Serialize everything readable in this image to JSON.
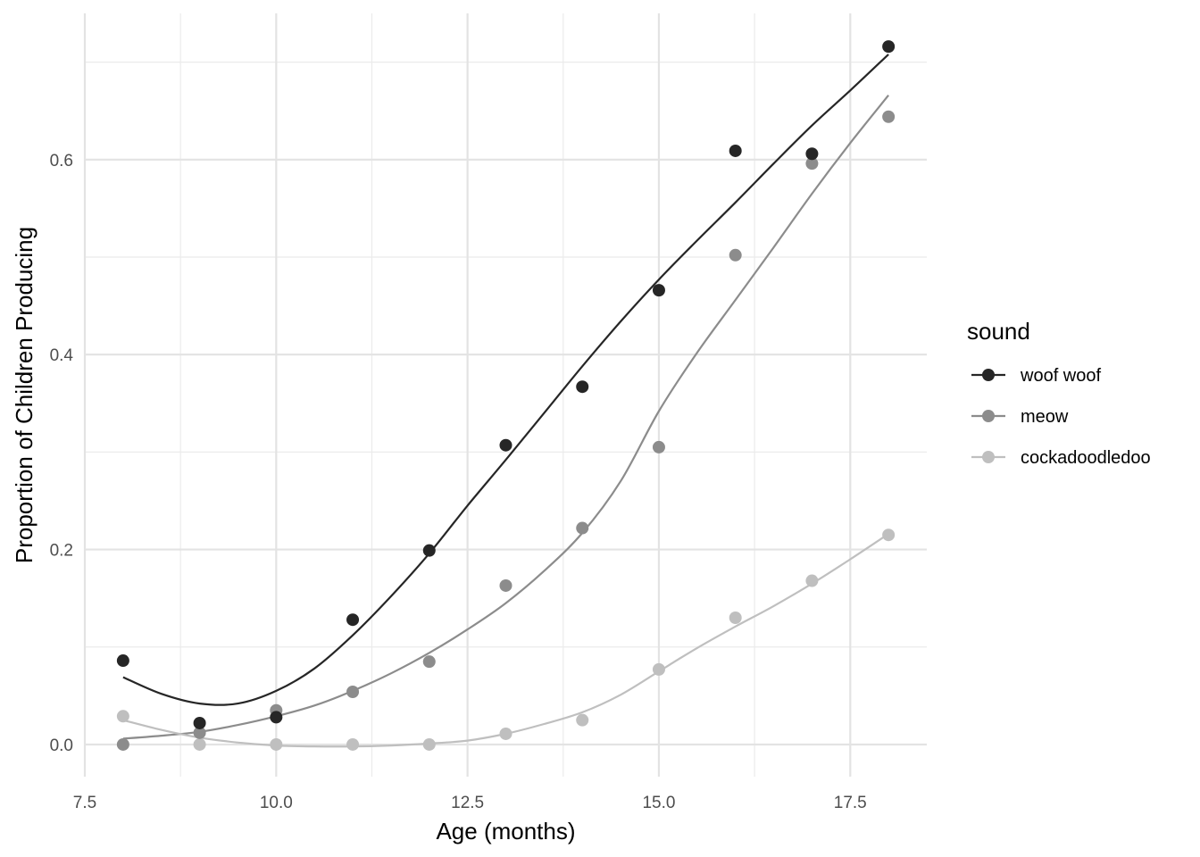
{
  "chart_data": {
    "type": "scatter",
    "xlabel": "Age (months)",
    "ylabel": "Proportion of Children Producing",
    "xlim": [
      7.5,
      18.5
    ],
    "ylim": [
      -0.033,
      0.75
    ],
    "x_ticks": [
      7.5,
      10.0,
      12.5,
      15.0,
      17.5
    ],
    "x_tick_labels": [
      "7.5",
      "10.0",
      "12.5",
      "15.0",
      "17.5"
    ],
    "y_ticks": [
      0.0,
      0.2,
      0.4,
      0.6
    ],
    "y_tick_labels": [
      "0.0",
      "0.2",
      "0.4",
      "0.6"
    ],
    "grid": true,
    "legend": {
      "title": "sound",
      "position": "right"
    },
    "x": [
      8,
      9,
      10,
      11,
      12,
      13,
      14,
      15,
      16,
      17,
      18
    ],
    "series": [
      {
        "name": "woof woof",
        "color": "#262626",
        "values": [
          0.086,
          0.022,
          0.028,
          0.128,
          0.199,
          0.307,
          0.367,
          0.466,
          0.609,
          0.606,
          0.716
        ],
        "smooth": [
          [
            8,
            0.069
          ],
          [
            8.5,
            0.052
          ],
          [
            9,
            0.042
          ],
          [
            9.5,
            0.042
          ],
          [
            10,
            0.055
          ],
          [
            10.5,
            0.078
          ],
          [
            11,
            0.112
          ],
          [
            11.5,
            0.152
          ],
          [
            12,
            0.196
          ],
          [
            12.5,
            0.245
          ],
          [
            13,
            0.292
          ],
          [
            13.5,
            0.34
          ],
          [
            14,
            0.388
          ],
          [
            14.5,
            0.434
          ],
          [
            15,
            0.477
          ],
          [
            15.5,
            0.517
          ],
          [
            16,
            0.556
          ],
          [
            16.5,
            0.596
          ],
          [
            17,
            0.635
          ],
          [
            17.5,
            0.671
          ],
          [
            18,
            0.708
          ]
        ]
      },
      {
        "name": "meow",
        "color": "#8c8c8c",
        "values": [
          0.0,
          0.012,
          0.035,
          0.054,
          0.085,
          0.163,
          0.222,
          0.305,
          0.502,
          0.596,
          0.644
        ],
        "smooth": [
          [
            8,
            0.006
          ],
          [
            8.5,
            0.009
          ],
          [
            9,
            0.013
          ],
          [
            9.5,
            0.02
          ],
          [
            10,
            0.029
          ],
          [
            10.5,
            0.04
          ],
          [
            11,
            0.055
          ],
          [
            11.5,
            0.073
          ],
          [
            12,
            0.094
          ],
          [
            12.5,
            0.118
          ],
          [
            13,
            0.145
          ],
          [
            13.5,
            0.178
          ],
          [
            14,
            0.217
          ],
          [
            14.5,
            0.27
          ],
          [
            15,
            0.342
          ],
          [
            15.5,
            0.402
          ],
          [
            16,
            0.456
          ],
          [
            16.5,
            0.51
          ],
          [
            17,
            0.565
          ],
          [
            17.5,
            0.617
          ],
          [
            18,
            0.666
          ]
        ]
      },
      {
        "name": "cockadoodledoo",
        "color": "#bfbfbf",
        "values": [
          0.029,
          0.0,
          0.0,
          0.0,
          0.0,
          0.011,
          0.025,
          0.077,
          0.13,
          0.168,
          0.215
        ],
        "smooth": [
          [
            8,
            0.025
          ],
          [
            8.5,
            0.015
          ],
          [
            9,
            0.007
          ],
          [
            9.5,
            0.002
          ],
          [
            10,
            -0.001
          ],
          [
            10.5,
            -0.002
          ],
          [
            11,
            -0.002
          ],
          [
            11.5,
            -0.001
          ],
          [
            12,
            0.001
          ],
          [
            12.5,
            0.004
          ],
          [
            13,
            0.011
          ],
          [
            13.5,
            0.021
          ],
          [
            14,
            0.033
          ],
          [
            14.5,
            0.051
          ],
          [
            15,
            0.075
          ],
          [
            15.5,
            0.099
          ],
          [
            16,
            0.121
          ],
          [
            16.5,
            0.142
          ],
          [
            17,
            0.165
          ],
          [
            17.5,
            0.19
          ],
          [
            18,
            0.216
          ]
        ]
      }
    ]
  }
}
